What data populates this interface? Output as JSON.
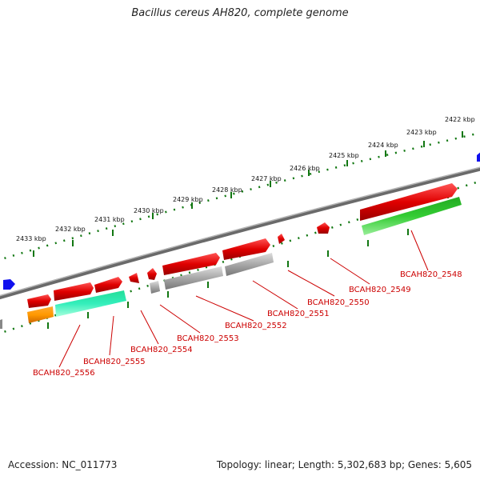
{
  "title": "Bacillus cereus AH820, complete genome",
  "footer": {
    "accession": "Accession: NC_011773",
    "topology": "Topology: linear; Length: 5,302,683 bp; Genes: 5,605"
  },
  "colors": {
    "red": "#e00000",
    "gray": "#a8a8a8",
    "green": "#33bb33",
    "teal": "#33eebb",
    "orange": "#ff9900",
    "blue": "#1010ee",
    "track": "#7f7f7f",
    "ticks": "#117711",
    "label": "#cc0000"
  },
  "kbp_ticks": [
    "2422 kbp",
    "2423 kbp",
    "2424 kbp",
    "2425 kbp",
    "2426 kbp",
    "2427 kbp",
    "2428 kbp",
    "2429 kbp",
    "2430 kbp",
    "2431 kbp",
    "2432 kbp",
    "2433 kbp"
  ],
  "gene_labels": [
    "BCAH820_2548",
    "BCAH820_2549",
    "BCAH820_2550",
    "BCAH820_2551",
    "BCAH820_2552",
    "BCAH820_2553",
    "BCAH820_2554",
    "BCAH820_2555",
    "BCAH820_2556"
  ]
}
